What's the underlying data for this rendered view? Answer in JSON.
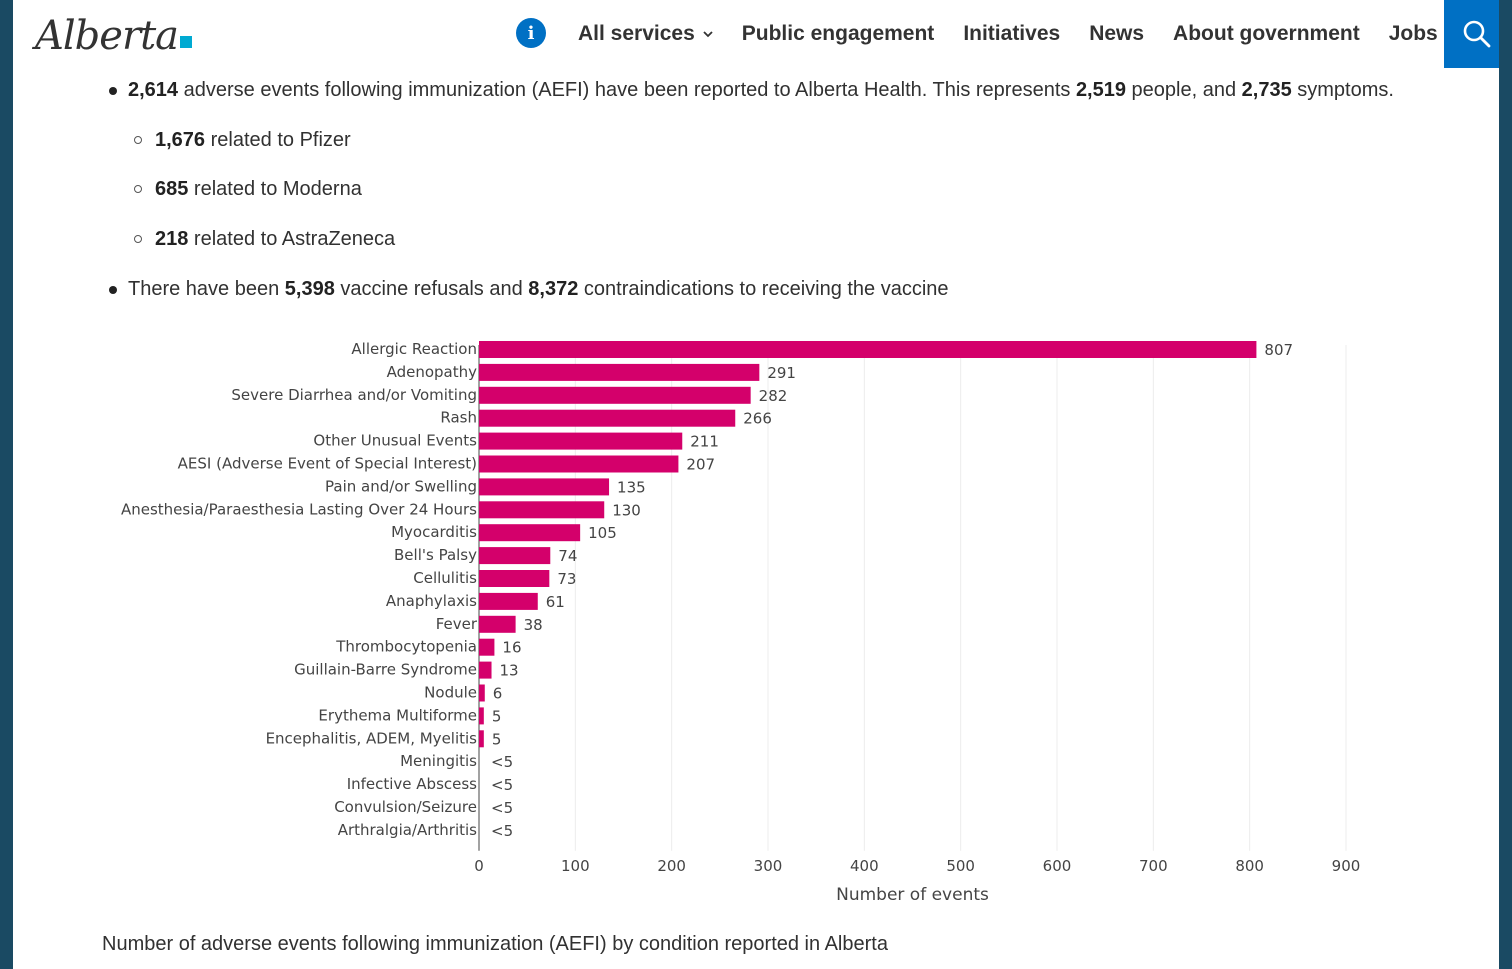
{
  "header": {
    "logo_text": "Alberta",
    "logo_accent_color": "#00aad2",
    "nav": [
      {
        "label": "All services",
        "has_dropdown": true
      },
      {
        "label": "Public engagement"
      },
      {
        "label": "Initiatives"
      },
      {
        "label": "News"
      },
      {
        "label": "About government"
      },
      {
        "label": "Jobs"
      }
    ],
    "accent_color": "#0070c4"
  },
  "content": {
    "bullet1": {
      "n1": "2,614",
      "t1": " adverse events following immunization (AEFI) have been reported to Alberta Health. This represents ",
      "n2": "2,519",
      "t2": " people, and ",
      "n3": "2,735",
      "t3": " symptoms."
    },
    "sub": [
      {
        "n": "1,676",
        "t": " related to Pfizer"
      },
      {
        "n": "685",
        "t": " related to Moderna"
      },
      {
        "n": "218",
        "t": " related to AstraZeneca"
      }
    ],
    "bullet2": {
      "t1": "There have been ",
      "n1": "5,398",
      "t2": " vaccine refusals and ",
      "n2": "8,372",
      "t3": " contraindications to receiving the vaccine"
    },
    "caption": "Number of adverse events following immunization (AEFI) by condition reported in Alberta"
  },
  "chart_data": {
    "type": "bar",
    "orientation": "horizontal",
    "bar_color": "#d4006b",
    "categories": [
      "Allergic Reaction",
      "Adenopathy",
      "Severe Diarrhea and/or Vomiting",
      "Rash",
      "Other Unusual Events",
      "AESI (Adverse Event of Special Interest)",
      "Pain and/or Swelling",
      "Anesthesia/Paraesthesia Lasting Over 24 Hours",
      "Myocarditis",
      "Bell's Palsy",
      "Cellulitis",
      "Anaphylaxis",
      "Fever",
      "Thrombocytopenia",
      "Guillain-Barre Syndrome",
      "Nodule",
      "Erythema Multiforme",
      "Encephalitis, ADEM, Myelitis",
      "Meningitis",
      "Infective Abscess",
      "Convulsion/Seizure",
      "Arthralgia/Arthritis"
    ],
    "values": [
      807,
      291,
      282,
      266,
      211,
      207,
      135,
      130,
      105,
      74,
      73,
      61,
      38,
      16,
      13,
      6,
      5,
      5,
      0,
      0,
      0,
      0
    ],
    "value_labels": [
      "807",
      "291",
      "282",
      "266",
      "211",
      "207",
      "135",
      "130",
      "105",
      "74",
      "73",
      "61",
      "38",
      "16",
      "13",
      "6",
      "5",
      "5",
      "<5",
      "<5",
      "<5",
      "<5"
    ],
    "xlabel": "Number of events",
    "ylabel": "",
    "xlim": [
      0,
      900
    ],
    "xticks": [
      0,
      100,
      200,
      300,
      400,
      500,
      600,
      700,
      800,
      900
    ],
    "grid": true
  }
}
